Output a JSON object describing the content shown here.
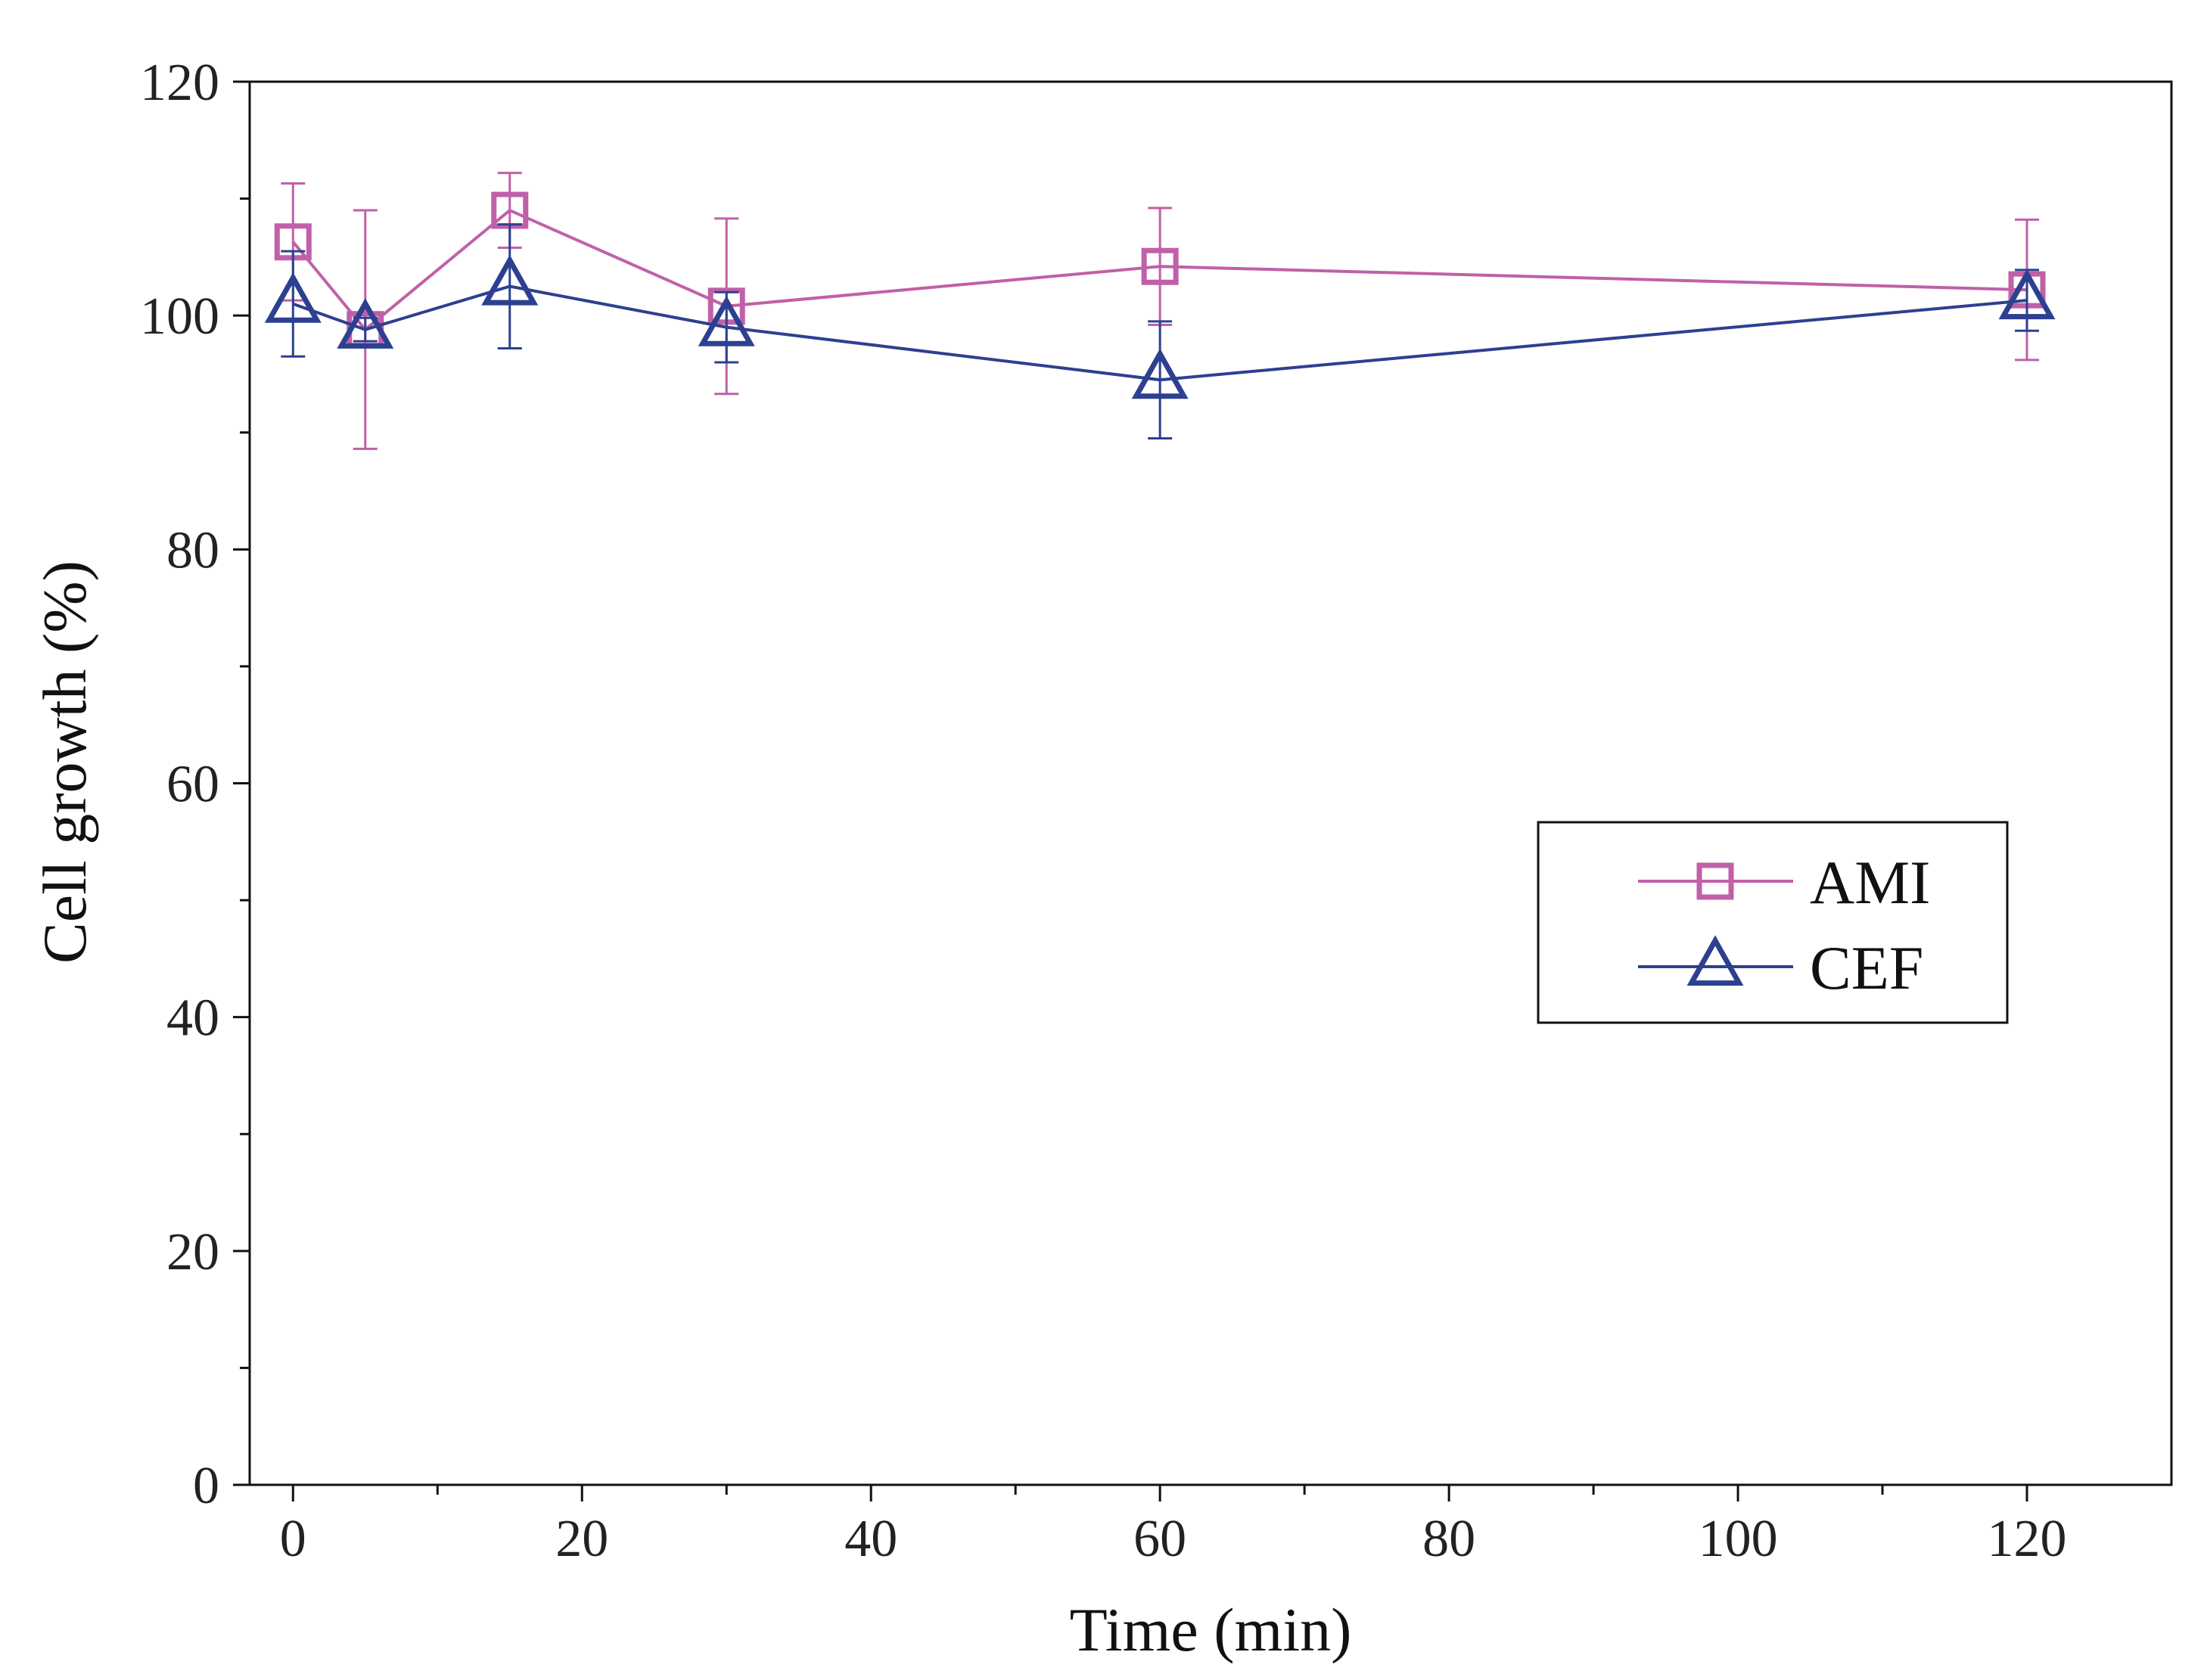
{
  "chart_data": {
    "type": "line",
    "title": "",
    "xlabel": "Time (min)",
    "ylabel": "Cell growth (%)",
    "xlim": [
      -3,
      130
    ],
    "ylim": [
      0,
      120
    ],
    "x_ticks": [
      0,
      20,
      40,
      60,
      80,
      100,
      120
    ],
    "y_ticks": [
      0,
      20,
      40,
      60,
      80,
      100,
      120
    ],
    "x_minor_ticks": [
      10,
      30,
      50,
      70,
      90,
      110
    ],
    "y_minor_ticks": [
      10,
      30,
      50,
      70,
      90,
      110
    ],
    "legend_position": "center-right",
    "series": [
      {
        "name": "AMI",
        "marker": "square",
        "color": "#c060a8",
        "x": [
          0,
          5,
          15,
          30,
          60,
          120
        ],
        "y": [
          106.3,
          98.8,
          109.0,
          100.8,
          104.2,
          102.2
        ],
        "err_up": [
          5.0,
          10.2,
          3.2,
          7.5,
          5.0,
          6.0
        ],
        "err_down": [
          5.0,
          10.2,
          3.2,
          7.5,
          5.0,
          6.0
        ]
      },
      {
        "name": "CEF",
        "marker": "triangle",
        "color": "#2d4090",
        "x": [
          0,
          5,
          15,
          30,
          60,
          120
        ],
        "y": [
          101.0,
          98.8,
          102.5,
          99.0,
          94.5,
          101.3
        ],
        "err_up": [
          4.5,
          1.0,
          5.3,
          3.0,
          5.0,
          2.6
        ],
        "err_down": [
          4.5,
          1.0,
          5.3,
          3.0,
          5.0,
          2.6
        ]
      }
    ]
  }
}
